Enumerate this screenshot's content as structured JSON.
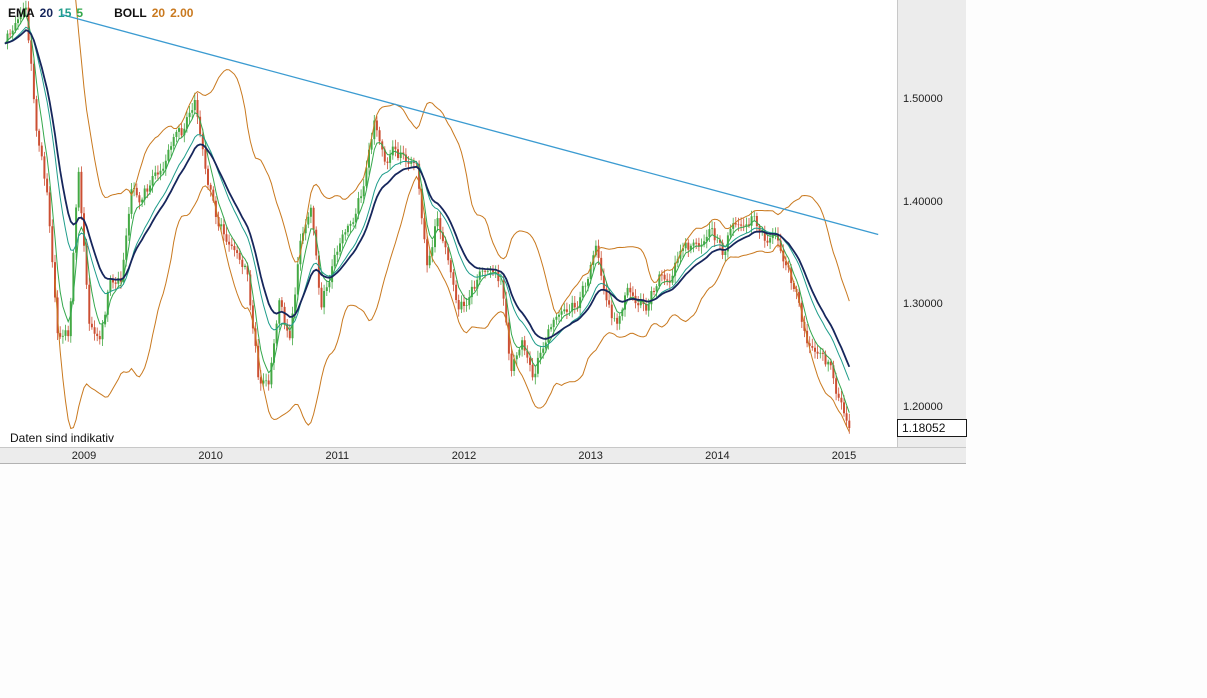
{
  "legend": {
    "ema_label": "EMA",
    "ema_params": [
      "20",
      "15",
      "5"
    ],
    "boll_label": "BOLL",
    "boll_params": [
      "20",
      "2.00"
    ]
  },
  "footnote": "Daten sind indikativ",
  "last_price_box": {
    "value": "1.18052"
  },
  "chart_data": {
    "type": "candlestick",
    "title": "",
    "x_axis": {
      "ticks": [
        "2009",
        "2010",
        "2011",
        "2012",
        "2013",
        "2014",
        "2015"
      ]
    },
    "y_axis": {
      "ticks": [
        "1.50000",
        "1.40000",
        "1.30000",
        "1.20000"
      ],
      "range": [
        1.162,
        1.597
      ]
    },
    "last_price": "1.18052",
    "series_monthly_close": {
      "start_year_decimal": 2008.375,
      "step_years": 0.0833333,
      "values": [
        1.555,
        1.575,
        1.59,
        1.47,
        1.41,
        1.273,
        1.27,
        1.43,
        1.282,
        1.267,
        1.326,
        1.323,
        1.413,
        1.403,
        1.426,
        1.433,
        1.464,
        1.472,
        1.5,
        1.433,
        1.386,
        1.362,
        1.351,
        1.33,
        1.23,
        1.223,
        1.305,
        1.268,
        1.363,
        1.395,
        1.298,
        1.338,
        1.369,
        1.381,
        1.416,
        1.48,
        1.44,
        1.452,
        1.44,
        1.438,
        1.339,
        1.385,
        1.344,
        1.296,
        1.308,
        1.333,
        1.334,
        1.324,
        1.236,
        1.266,
        1.23,
        1.258,
        1.286,
        1.296,
        1.298,
        1.319,
        1.358,
        1.305,
        1.282,
        1.317,
        1.3,
        1.301,
        1.33,
        1.322,
        1.353,
        1.358,
        1.359,
        1.375,
        1.349,
        1.38,
        1.377,
        1.387,
        1.363,
        1.369,
        1.339,
        1.313,
        1.263,
        1.253,
        1.245,
        1.21,
        1.18052
      ]
    },
    "overlays": {
      "ema": {
        "periods": [
          "20",
          "15",
          "5"
        ],
        "colors": {
          "20": "#16265c",
          "15": "#1f9d8b",
          "5": "#35a84c"
        }
      },
      "bollinger": {
        "period": 20,
        "stddev": 2.0,
        "color": "#c9791f"
      }
    },
    "trendline": {
      "color": "#3b9bd1",
      "start": {
        "year": 2008.83,
        "price": 1.583
      },
      "end": {
        "year": 2015.27,
        "price": 1.369
      }
    },
    "candle_colors": {
      "up": "#44a944",
      "down": "#cc4f33"
    },
    "layout": {
      "grid": false,
      "legend_position": "top-left",
      "plot_background": "#ffffff",
      "axis_background": "#ececec"
    }
  }
}
